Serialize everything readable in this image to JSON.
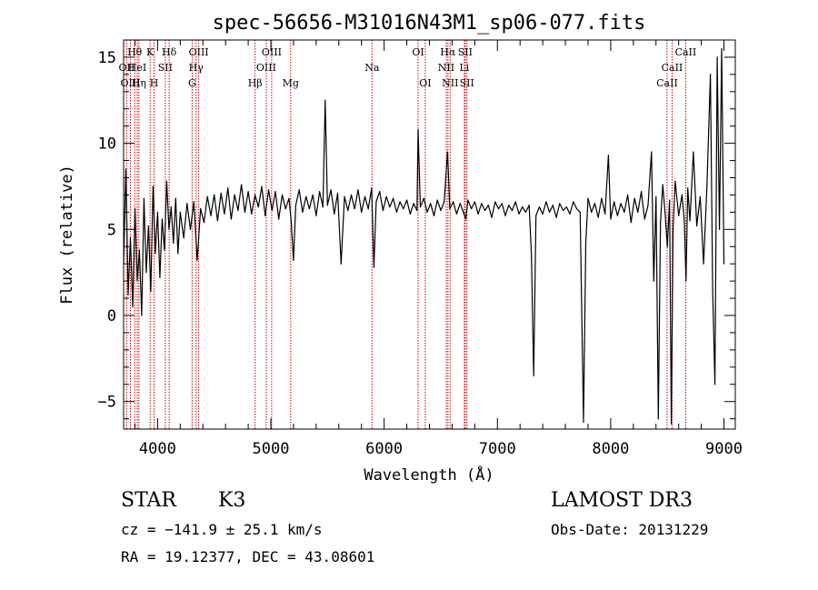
{
  "chart_data": {
    "type": "line",
    "title": "spec-56656-M31016N43M1_sp06-077.fits",
    "xlabel": "Wavelength (Å)",
    "ylabel": "Flux (relative)",
    "xlim": [
      3700,
      9100
    ],
    "ylim": [
      -6.6,
      16.0
    ],
    "x_ticks": [
      4000,
      5000,
      6000,
      7000,
      8000,
      9000
    ],
    "x_tick_labels": [
      "4000",
      "5000",
      "6000",
      "7000",
      "8000",
      "9000"
    ],
    "y_ticks": [
      -5,
      0,
      5,
      10,
      15
    ],
    "y_tick_labels": [
      "−5",
      "0",
      "5",
      "10",
      "15"
    ],
    "series": [
      {
        "name": "flux",
        "color": "#000000",
        "points": [
          [
            3700,
            3.0
          ],
          [
            3720,
            8.5
          ],
          [
            3740,
            1.2
          ],
          [
            3760,
            4.5
          ],
          [
            3780,
            0.5
          ],
          [
            3800,
            6.2
          ],
          [
            3820,
            2.0
          ],
          [
            3840,
            3.8
          ],
          [
            3860,
            0.0
          ],
          [
            3880,
            6.8
          ],
          [
            3900,
            2.5
          ],
          [
            3920,
            5.2
          ],
          [
            3940,
            1.4
          ],
          [
            3960,
            7.5
          ],
          [
            3980,
            3.6
          ],
          [
            4000,
            6.0
          ],
          [
            4020,
            2.2
          ],
          [
            4040,
            5.6
          ],
          [
            4060,
            3.8
          ],
          [
            4080,
            7.8
          ],
          [
            4100,
            5.0
          ],
          [
            4120,
            6.3
          ],
          [
            4140,
            4.2
          ],
          [
            4160,
            6.8
          ],
          [
            4180,
            3.6
          ],
          [
            4200,
            6.0
          ],
          [
            4230,
            4.5
          ],
          [
            4260,
            6.5
          ],
          [
            4290,
            5.0
          ],
          [
            4320,
            6.6
          ],
          [
            4350,
            3.2
          ],
          [
            4380,
            6.2
          ],
          [
            4410,
            5.4
          ],
          [
            4440,
            6.9
          ],
          [
            4470,
            5.8
          ],
          [
            4500,
            7.0
          ],
          [
            4530,
            5.5
          ],
          [
            4560,
            7.1
          ],
          [
            4590,
            5.9
          ],
          [
            4620,
            7.4
          ],
          [
            4650,
            5.6
          ],
          [
            4680,
            7.0
          ],
          [
            4710,
            6.1
          ],
          [
            4740,
            7.6
          ],
          [
            4770,
            6.0
          ],
          [
            4800,
            7.2
          ],
          [
            4830,
            5.9
          ],
          [
            4860,
            7.0
          ],
          [
            4890,
            6.3
          ],
          [
            4920,
            7.5
          ],
          [
            4950,
            5.8
          ],
          [
            4980,
            7.3
          ],
          [
            5010,
            6.1
          ],
          [
            5040,
            7.2
          ],
          [
            5070,
            5.6
          ],
          [
            5100,
            7.0
          ],
          [
            5130,
            6.2
          ],
          [
            5160,
            6.8
          ],
          [
            5180,
            5.4
          ],
          [
            5200,
            3.2
          ],
          [
            5220,
            6.4
          ],
          [
            5250,
            7.3
          ],
          [
            5280,
            6.0
          ],
          [
            5310,
            6.9
          ],
          [
            5340,
            6.2
          ],
          [
            5370,
            7.0
          ],
          [
            5400,
            5.8
          ],
          [
            5430,
            7.2
          ],
          [
            5460,
            6.3
          ],
          [
            5480,
            12.5
          ],
          [
            5500,
            6.4
          ],
          [
            5530,
            7.3
          ],
          [
            5560,
            5.9
          ],
          [
            5590,
            7.1
          ],
          [
            5620,
            3.0
          ],
          [
            5650,
            6.9
          ],
          [
            5680,
            6.1
          ],
          [
            5710,
            7.0
          ],
          [
            5740,
            6.2
          ],
          [
            5770,
            7.3
          ],
          [
            5800,
            6.0
          ],
          [
            5830,
            6.9
          ],
          [
            5860,
            6.2
          ],
          [
            5890,
            7.4
          ],
          [
            5910,
            2.8
          ],
          [
            5930,
            6.6
          ],
          [
            5960,
            7.2
          ],
          [
            5990,
            6.1
          ],
          [
            6020,
            6.9
          ],
          [
            6050,
            6.3
          ],
          [
            6080,
            6.8
          ],
          [
            6110,
            6.0
          ],
          [
            6140,
            6.6
          ],
          [
            6170,
            6.2
          ],
          [
            6200,
            6.7
          ],
          [
            6230,
            5.9
          ],
          [
            6260,
            6.5
          ],
          [
            6290,
            6.1
          ],
          [
            6300,
            10.8
          ],
          [
            6320,
            6.3
          ],
          [
            6350,
            6.8
          ],
          [
            6380,
            6.0
          ],
          [
            6410,
            6.5
          ],
          [
            6440,
            5.8
          ],
          [
            6470,
            6.7
          ],
          [
            6500,
            6.1
          ],
          [
            6530,
            6.6
          ],
          [
            6560,
            9.5
          ],
          [
            6580,
            6.2
          ],
          [
            6610,
            6.6
          ],
          [
            6640,
            5.9
          ],
          [
            6670,
            6.5
          ],
          [
            6700,
            6.0
          ],
          [
            6720,
            5.6
          ],
          [
            6740,
            6.7
          ],
          [
            6770,
            6.2
          ],
          [
            6800,
            6.6
          ],
          [
            6830,
            5.9
          ],
          [
            6860,
            6.5
          ],
          [
            6890,
            6.1
          ],
          [
            6920,
            6.4
          ],
          [
            6950,
            5.7
          ],
          [
            6980,
            6.6
          ],
          [
            7010,
            6.2
          ],
          [
            7040,
            6.5
          ],
          [
            7070,
            5.8
          ],
          [
            7100,
            6.4
          ],
          [
            7130,
            6.1
          ],
          [
            7160,
            6.6
          ],
          [
            7190,
            5.9
          ],
          [
            7220,
            6.3
          ],
          [
            7250,
            6.0
          ],
          [
            7280,
            6.4
          ],
          [
            7300,
            3.5
          ],
          [
            7320,
            -3.5
          ],
          [
            7340,
            5.8
          ],
          [
            7370,
            6.3
          ],
          [
            7400,
            5.9
          ],
          [
            7430,
            6.6
          ],
          [
            7460,
            6.0
          ],
          [
            7490,
            6.4
          ],
          [
            7520,
            5.7
          ],
          [
            7550,
            6.5
          ],
          [
            7580,
            6.1
          ],
          [
            7610,
            6.3
          ],
          [
            7640,
            5.9
          ],
          [
            7670,
            6.6
          ],
          [
            7700,
            6.2
          ],
          [
            7730,
            6.0
          ],
          [
            7760,
            -6.2
          ],
          [
            7780,
            4.2
          ],
          [
            7800,
            6.8
          ],
          [
            7830,
            6.0
          ],
          [
            7860,
            6.5
          ],
          [
            7890,
            5.7
          ],
          [
            7920,
            6.8
          ],
          [
            7950,
            5.9
          ],
          [
            7980,
            9.3
          ],
          [
            8000,
            5.6
          ],
          [
            8030,
            6.6
          ],
          [
            8060,
            5.8
          ],
          [
            8090,
            6.5
          ],
          [
            8120,
            6.0
          ],
          [
            8150,
            7.0
          ],
          [
            8180,
            5.4
          ],
          [
            8210,
            6.8
          ],
          [
            8240,
            6.0
          ],
          [
            8270,
            7.2
          ],
          [
            8300,
            5.6
          ],
          [
            8330,
            6.4
          ],
          [
            8360,
            9.5
          ],
          [
            8380,
            2.0
          ],
          [
            8400,
            6.9
          ],
          [
            8420,
            -6.0
          ],
          [
            8440,
            5.4
          ],
          [
            8460,
            7.6
          ],
          [
            8480,
            6.0
          ],
          [
            8500,
            4.0
          ],
          [
            8520,
            6.7
          ],
          [
            8535,
            -6.3
          ],
          [
            8550,
            5.0
          ],
          [
            8570,
            7.8
          ],
          [
            8600,
            5.8
          ],
          [
            8630,
            7.0
          ],
          [
            8650,
            5.5
          ],
          [
            8665,
            2.0
          ],
          [
            8680,
            7.4
          ],
          [
            8700,
            5.5
          ],
          [
            8730,
            9.5
          ],
          [
            8760,
            5.2
          ],
          [
            8790,
            6.9
          ],
          [
            8820,
            3.0
          ],
          [
            8850,
            7.5
          ],
          [
            8880,
            14.0
          ],
          [
            8900,
            1.5
          ],
          [
            8920,
            -4.0
          ],
          [
            8940,
            15.0
          ],
          [
            8960,
            5.0
          ],
          [
            8980,
            15.5
          ],
          [
            9000,
            3.0
          ]
        ]
      }
    ],
    "line_markers": [
      {
        "label": "Hθ",
        "wavelength": 3798,
        "row": 1
      },
      {
        "label": "OII",
        "wavelength": 3727,
        "row": 2
      },
      {
        "label": "HeI",
        "wavelength": 3820,
        "row": 2
      },
      {
        "label": "OIII",
        "wavelength": 3760,
        "row": 3
      },
      {
        "label": "Hη",
        "wavelength": 3835,
        "row": 3
      },
      {
        "label": "K",
        "wavelength": 3934,
        "row": 1
      },
      {
        "label": "SII",
        "wavelength": 4068,
        "row": 2
      },
      {
        "label": "H",
        "wavelength": 3969,
        "row": 3
      },
      {
        "label": "Hδ",
        "wavelength": 4102,
        "row": 1
      },
      {
        "label": "OIII",
        "wavelength": 4363,
        "row": 1
      },
      {
        "label": "Hγ",
        "wavelength": 4340,
        "row": 2
      },
      {
        "label": "G",
        "wavelength": 4305,
        "row": 3
      },
      {
        "label": "Hβ",
        "wavelength": 4861,
        "row": 3
      },
      {
        "label": "OIII",
        "wavelength": 5007,
        "row": 1
      },
      {
        "label": "OIII",
        "wavelength": 4959,
        "row": 2
      },
      {
        "label": "Mg",
        "wavelength": 5175,
        "row": 3
      },
      {
        "label": "Na",
        "wavelength": 5893,
        "row": 2
      },
      {
        "label": "OI",
        "wavelength": 6300,
        "row": 1
      },
      {
        "label": "OI",
        "wavelength": 6363,
        "row": 3
      },
      {
        "label": "Hα",
        "wavelength": 6563,
        "row": 1
      },
      {
        "label": "NII",
        "wavelength": 6548,
        "row": 2
      },
      {
        "label": "NII",
        "wavelength": 6583,
        "row": 3
      },
      {
        "label": "SII",
        "wavelength": 6716,
        "row": 1
      },
      {
        "label": "Li",
        "wavelength": 6708,
        "row": 2
      },
      {
        "label": "SII",
        "wavelength": 6731,
        "row": 3
      },
      {
        "label": "CaII",
        "wavelength": 8662,
        "row": 1
      },
      {
        "label": "CaII",
        "wavelength": 8542,
        "row": 2
      },
      {
        "label": "CaII",
        "wavelength": 8498,
        "row": 3
      }
    ],
    "marker_color": "#cc0000"
  },
  "info": {
    "class_label": "STAR",
    "subclass_label": "K3",
    "survey": "LAMOST DR3",
    "cz_line": "cz = −141.9 ± 25.1 km/s",
    "obs_date": "Obs-Date: 20131229",
    "coords": "RA =  19.12377, DEC =  43.08601"
  }
}
